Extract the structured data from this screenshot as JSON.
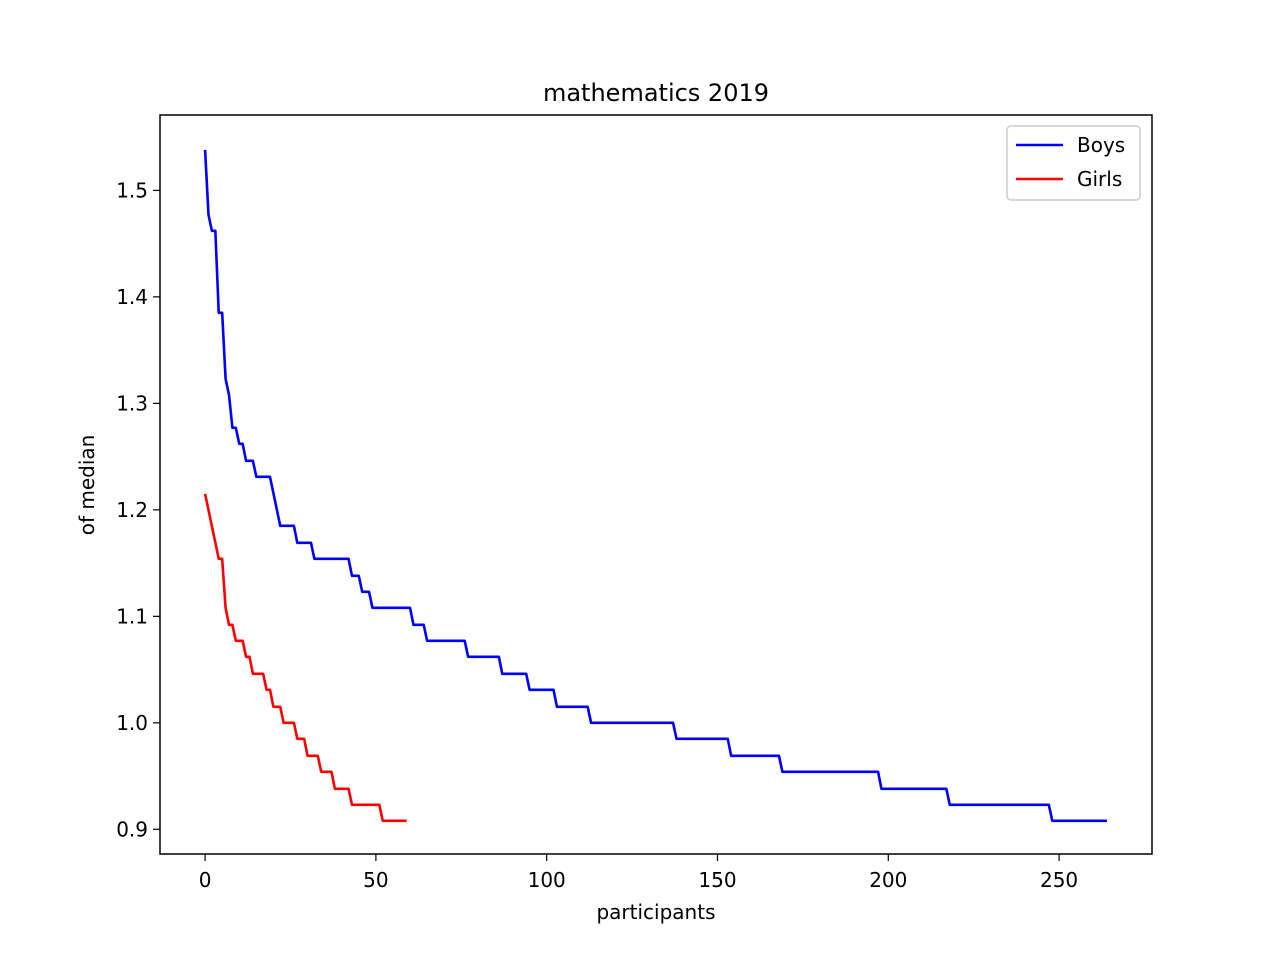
{
  "chart_data": {
    "type": "line",
    "title": "mathematics 2019",
    "xlabel": "participants",
    "ylabel": "of median",
    "xlim": [
      -13.2,
      277.2
    ],
    "ylim": [
      0.8768,
      1.5708
    ],
    "xticks": [
      0,
      50,
      100,
      150,
      200,
      250
    ],
    "xtick_labels": [
      "0",
      "50",
      "100",
      "150",
      "200",
      "250"
    ],
    "yticks": [
      0.9,
      1.0,
      1.1,
      1.2,
      1.3,
      1.4,
      1.5
    ],
    "ytick_labels": [
      "0.9",
      "1.0",
      "1.1",
      "1.2",
      "1.3",
      "1.4",
      "1.5"
    ],
    "grid": false,
    "legend_position": "top-right",
    "series": [
      {
        "name": "Boys",
        "color": "#0000ff",
        "points": [
          [
            0,
            1.538
          ],
          [
            1,
            1.477
          ],
          [
            2,
            1.462
          ],
          [
            3,
            1.462
          ],
          [
            4,
            1.385
          ],
          [
            5,
            1.385
          ],
          [
            6,
            1.323
          ],
          [
            7,
            1.308
          ],
          [
            8,
            1.277
          ],
          [
            9,
            1.277
          ],
          [
            10,
            1.262
          ],
          [
            11,
            1.262
          ],
          [
            12,
            1.246
          ],
          [
            14,
            1.246
          ],
          [
            15,
            1.231
          ],
          [
            19,
            1.231
          ],
          [
            22,
            1.185
          ],
          [
            26,
            1.185
          ],
          [
            27,
            1.169
          ],
          [
            31,
            1.169
          ],
          [
            32,
            1.154
          ],
          [
            42,
            1.154
          ],
          [
            43,
            1.138
          ],
          [
            45,
            1.138
          ],
          [
            46,
            1.123
          ],
          [
            48,
            1.123
          ],
          [
            49,
            1.108
          ],
          [
            60,
            1.108
          ],
          [
            61,
            1.092
          ],
          [
            64,
            1.092
          ],
          [
            65,
            1.077
          ],
          [
            76,
            1.077
          ],
          [
            77,
            1.062
          ],
          [
            86,
            1.062
          ],
          [
            87,
            1.046
          ],
          [
            94,
            1.046
          ],
          [
            95,
            1.031
          ],
          [
            102,
            1.031
          ],
          [
            103,
            1.015
          ],
          [
            112,
            1.015
          ],
          [
            113,
            1.0
          ],
          [
            137,
            1.0
          ],
          [
            138,
            0.985
          ],
          [
            153,
            0.985
          ],
          [
            154,
            0.969
          ],
          [
            168,
            0.969
          ],
          [
            169,
            0.954
          ],
          [
            197,
            0.954
          ],
          [
            198,
            0.938
          ],
          [
            217,
            0.938
          ],
          [
            218,
            0.923
          ],
          [
            247,
            0.923
          ],
          [
            248,
            0.908
          ],
          [
            264,
            0.908
          ]
        ]
      },
      {
        "name": "Girls",
        "color": "#ff0000",
        "points": [
          [
            0,
            1.215
          ],
          [
            4,
            1.154
          ],
          [
            5,
            1.154
          ],
          [
            6,
            1.108
          ],
          [
            7,
            1.092
          ],
          [
            8,
            1.092
          ],
          [
            9,
            1.077
          ],
          [
            11,
            1.077
          ],
          [
            12,
            1.062
          ],
          [
            13,
            1.062
          ],
          [
            14,
            1.046
          ],
          [
            17,
            1.046
          ],
          [
            18,
            1.031
          ],
          [
            19,
            1.031
          ],
          [
            20,
            1.015
          ],
          [
            22,
            1.015
          ],
          [
            23,
            1.0
          ],
          [
            26,
            1.0
          ],
          [
            27,
            0.985
          ],
          [
            29,
            0.985
          ],
          [
            30,
            0.969
          ],
          [
            33,
            0.969
          ],
          [
            34,
            0.954
          ],
          [
            37,
            0.954
          ],
          [
            38,
            0.938
          ],
          [
            42,
            0.938
          ],
          [
            43,
            0.923
          ],
          [
            51,
            0.923
          ],
          [
            52,
            0.908
          ],
          [
            59,
            0.908
          ]
        ]
      }
    ]
  }
}
